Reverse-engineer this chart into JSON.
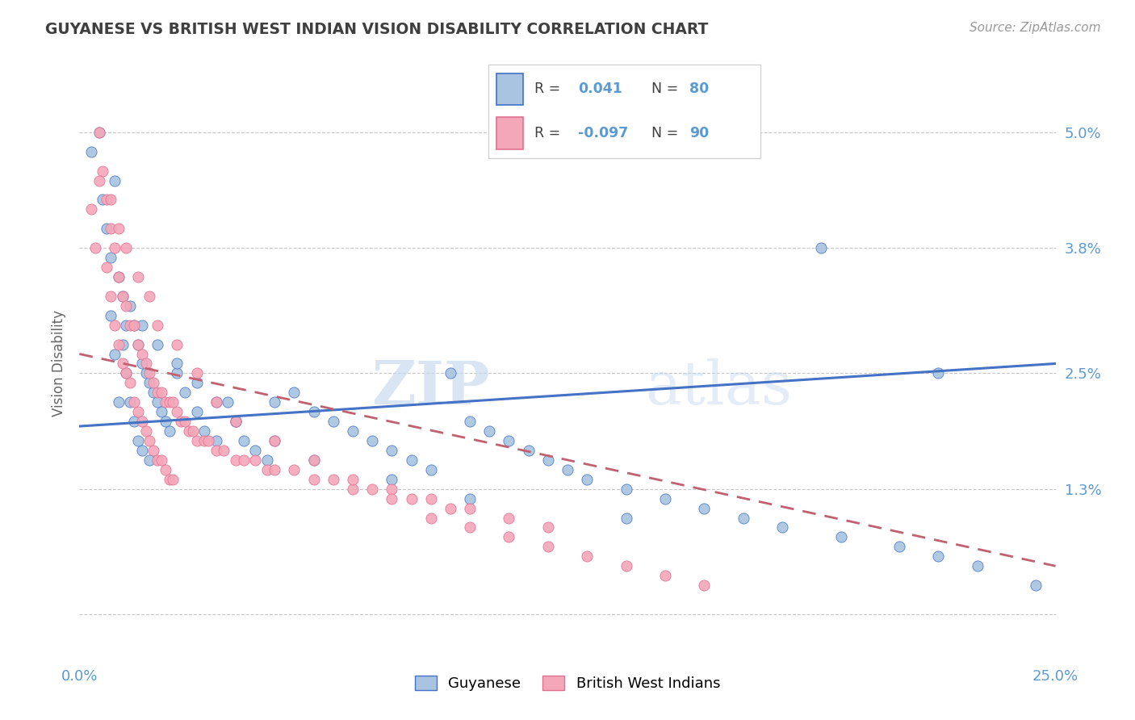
{
  "title": "GUYANESE VS BRITISH WEST INDIAN VISION DISABILITY CORRELATION CHART",
  "source": "Source: ZipAtlas.com",
  "ylabel": "Vision Disability",
  "yticks": [
    0.0,
    0.013,
    0.025,
    0.038,
    0.05
  ],
  "ytick_labels": [
    "",
    "1.3%",
    "2.5%",
    "3.8%",
    "5.0%"
  ],
  "xlim": [
    0.0,
    0.25
  ],
  "ylim": [
    -0.005,
    0.057
  ],
  "R_blue": 0.041,
  "N_blue": 80,
  "R_pink": -0.097,
  "N_pink": 90,
  "color_blue": "#a8c4e0",
  "color_pink": "#f4a7b9",
  "line_blue": "#4472c4",
  "line_pink_solid": "#c06070",
  "watermark_text": "ZIPatlas",
  "title_color": "#3f3f3f",
  "axis_color": "#5b9bd5",
  "blue_line_y0": 0.0195,
  "blue_line_y1": 0.026,
  "pink_line_y0": 0.027,
  "pink_line_y1": 0.005,
  "blue_scatter_x": [
    0.003,
    0.005,
    0.006,
    0.007,
    0.008,
    0.008,
    0.009,
    0.009,
    0.01,
    0.01,
    0.011,
    0.011,
    0.012,
    0.012,
    0.013,
    0.013,
    0.014,
    0.014,
    0.015,
    0.015,
    0.016,
    0.016,
    0.017,
    0.018,
    0.018,
    0.019,
    0.02,
    0.021,
    0.022,
    0.023,
    0.025,
    0.027,
    0.03,
    0.032,
    0.035,
    0.038,
    0.04,
    0.042,
    0.045,
    0.048,
    0.05,
    0.055,
    0.06,
    0.065,
    0.07,
    0.075,
    0.08,
    0.085,
    0.09,
    0.095,
    0.1,
    0.105,
    0.11,
    0.115,
    0.12,
    0.125,
    0.13,
    0.14,
    0.15,
    0.16,
    0.17,
    0.18,
    0.195,
    0.21,
    0.22,
    0.016,
    0.02,
    0.025,
    0.03,
    0.035,
    0.04,
    0.05,
    0.06,
    0.08,
    0.1,
    0.14,
    0.19,
    0.22,
    0.23,
    0.245
  ],
  "blue_scatter_y": [
    0.048,
    0.05,
    0.043,
    0.04,
    0.037,
    0.031,
    0.045,
    0.027,
    0.035,
    0.022,
    0.033,
    0.028,
    0.03,
    0.025,
    0.032,
    0.022,
    0.03,
    0.02,
    0.028,
    0.018,
    0.026,
    0.017,
    0.025,
    0.024,
    0.016,
    0.023,
    0.022,
    0.021,
    0.02,
    0.019,
    0.025,
    0.023,
    0.021,
    0.019,
    0.018,
    0.022,
    0.02,
    0.018,
    0.017,
    0.016,
    0.022,
    0.023,
    0.021,
    0.02,
    0.019,
    0.018,
    0.017,
    0.016,
    0.015,
    0.025,
    0.02,
    0.019,
    0.018,
    0.017,
    0.016,
    0.015,
    0.014,
    0.013,
    0.012,
    0.011,
    0.01,
    0.009,
    0.008,
    0.007,
    0.006,
    0.03,
    0.028,
    0.026,
    0.024,
    0.022,
    0.02,
    0.018,
    0.016,
    0.014,
    0.012,
    0.01,
    0.038,
    0.025,
    0.005,
    0.003
  ],
  "pink_scatter_x": [
    0.003,
    0.004,
    0.005,
    0.006,
    0.007,
    0.007,
    0.008,
    0.008,
    0.009,
    0.009,
    0.01,
    0.01,
    0.011,
    0.011,
    0.012,
    0.012,
    0.013,
    0.013,
    0.014,
    0.014,
    0.015,
    0.015,
    0.016,
    0.016,
    0.017,
    0.017,
    0.018,
    0.018,
    0.019,
    0.019,
    0.02,
    0.02,
    0.021,
    0.021,
    0.022,
    0.022,
    0.023,
    0.023,
    0.024,
    0.024,
    0.025,
    0.026,
    0.027,
    0.028,
    0.029,
    0.03,
    0.032,
    0.033,
    0.035,
    0.037,
    0.04,
    0.042,
    0.045,
    0.048,
    0.05,
    0.055,
    0.06,
    0.065,
    0.07,
    0.075,
    0.08,
    0.085,
    0.09,
    0.095,
    0.1,
    0.11,
    0.12,
    0.005,
    0.008,
    0.01,
    0.012,
    0.015,
    0.018,
    0.02,
    0.025,
    0.03,
    0.035,
    0.04,
    0.05,
    0.06,
    0.07,
    0.08,
    0.09,
    0.1,
    0.11,
    0.12,
    0.13,
    0.14,
    0.15,
    0.16
  ],
  "pink_scatter_y": [
    0.042,
    0.038,
    0.05,
    0.046,
    0.043,
    0.036,
    0.04,
    0.033,
    0.038,
    0.03,
    0.035,
    0.028,
    0.033,
    0.026,
    0.032,
    0.025,
    0.03,
    0.024,
    0.03,
    0.022,
    0.028,
    0.021,
    0.027,
    0.02,
    0.026,
    0.019,
    0.025,
    0.018,
    0.024,
    0.017,
    0.023,
    0.016,
    0.023,
    0.016,
    0.022,
    0.015,
    0.022,
    0.014,
    0.022,
    0.014,
    0.021,
    0.02,
    0.02,
    0.019,
    0.019,
    0.018,
    0.018,
    0.018,
    0.017,
    0.017,
    0.016,
    0.016,
    0.016,
    0.015,
    0.015,
    0.015,
    0.014,
    0.014,
    0.013,
    0.013,
    0.013,
    0.012,
    0.012,
    0.011,
    0.011,
    0.01,
    0.009,
    0.045,
    0.043,
    0.04,
    0.038,
    0.035,
    0.033,
    0.03,
    0.028,
    0.025,
    0.022,
    0.02,
    0.018,
    0.016,
    0.014,
    0.012,
    0.01,
    0.009,
    0.008,
    0.007,
    0.006,
    0.005,
    0.004,
    0.003
  ]
}
